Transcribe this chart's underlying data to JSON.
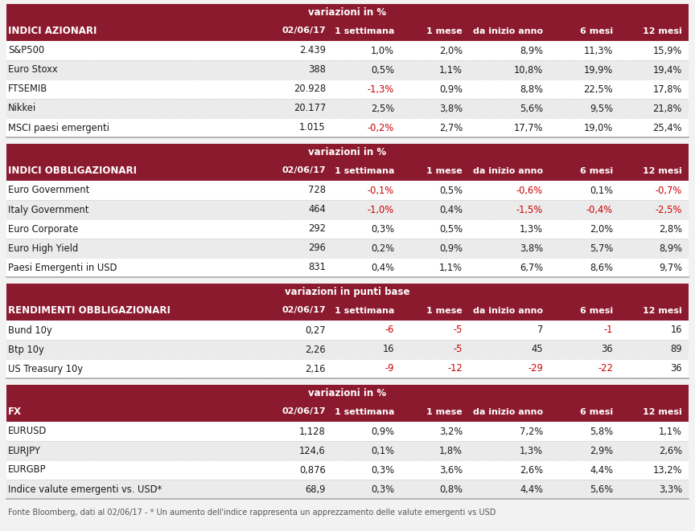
{
  "bg_color": "#f2f2f2",
  "header_bg": "#8B1A2E",
  "header_text_color": "#ffffff",
  "row_text_color": "#1a1a1a",
  "red_color": "#CC0000",
  "footer_text": "Fonte Bloomberg, dati al 02/06/17 - * Un aumento dell'indice rappresenta un apprezzamento delle valute emergenti vs USD",
  "sections": [
    {
      "header": "INDICI AZIONARI",
      "subheader": "variazioni in %",
      "cols": [
        "02/06/17",
        "1 settimana",
        "1 mese",
        "da inizio anno",
        "6 mesi",
        "12 mesi"
      ],
      "rows": [
        {
          "name": "S&P500",
          "vals": [
            "2.439",
            "1,0%",
            "2,0%",
            "8,9%",
            "11,3%",
            "15,9%"
          ],
          "red": [
            false,
            false,
            false,
            false,
            false,
            false
          ]
        },
        {
          "name": "Euro Stoxx",
          "vals": [
            "388",
            "0,5%",
            "1,1%",
            "10,8%",
            "19,9%",
            "19,4%"
          ],
          "red": [
            false,
            false,
            false,
            false,
            false,
            false
          ]
        },
        {
          "name": "FTSEMIB",
          "vals": [
            "20.928",
            "-1,3%",
            "0,9%",
            "8,8%",
            "22,5%",
            "17,8%"
          ],
          "red": [
            false,
            true,
            false,
            false,
            false,
            false
          ]
        },
        {
          "name": "Nikkei",
          "vals": [
            "20.177",
            "2,5%",
            "3,8%",
            "5,6%",
            "9,5%",
            "21,8%"
          ],
          "red": [
            false,
            false,
            false,
            false,
            false,
            false
          ]
        },
        {
          "name": "MSCI paesi emergenti",
          "vals": [
            "1.015",
            "-0,2%",
            "2,7%",
            "17,7%",
            "19,0%",
            "25,4%"
          ],
          "red": [
            false,
            true,
            false,
            false,
            false,
            false
          ]
        }
      ]
    },
    {
      "header": "INDICI OBBLIGAZIONARI",
      "subheader": "variazioni in %",
      "cols": [
        "02/06/17",
        "1 settimana",
        "1 mese",
        "da inizio anno",
        "6 mesi",
        "12 mesi"
      ],
      "rows": [
        {
          "name": "Euro Government",
          "vals": [
            "728",
            "-0,1%",
            "0,5%",
            "-0,6%",
            "0,1%",
            "-0,7%"
          ],
          "red": [
            false,
            true,
            false,
            true,
            false,
            true
          ]
        },
        {
          "name": "Italy Government",
          "vals": [
            "464",
            "-1,0%",
            "0,4%",
            "-1,5%",
            "-0,4%",
            "-2,5%"
          ],
          "red": [
            false,
            true,
            false,
            true,
            true,
            true
          ]
        },
        {
          "name": "Euro Corporate",
          "vals": [
            "292",
            "0,3%",
            "0,5%",
            "1,3%",
            "2,0%",
            "2,8%"
          ],
          "red": [
            false,
            false,
            false,
            false,
            false,
            false
          ]
        },
        {
          "name": "Euro High Yield",
          "vals": [
            "296",
            "0,2%",
            "0,9%",
            "3,8%",
            "5,7%",
            "8,9%"
          ],
          "red": [
            false,
            false,
            false,
            false,
            false,
            false
          ]
        },
        {
          "name": "Paesi Emergenti in USD",
          "vals": [
            "831",
            "0,4%",
            "1,1%",
            "6,7%",
            "8,6%",
            "9,7%"
          ],
          "red": [
            false,
            false,
            false,
            false,
            false,
            false
          ]
        }
      ]
    },
    {
      "header": "RENDIMENTI OBBLIGAZIONARI",
      "subheader": "variazioni in punti base",
      "cols": [
        "02/06/17",
        "1 settimana",
        "1 mese",
        "da inizio anno",
        "6 mesi",
        "12 mesi"
      ],
      "rows": [
        {
          "name": "Bund 10y",
          "vals": [
            "0,27",
            "-6",
            "-5",
            "7",
            "-1",
            "16"
          ],
          "red": [
            false,
            true,
            true,
            false,
            true,
            false
          ]
        },
        {
          "name": "Btp 10y",
          "vals": [
            "2,26",
            "16",
            "-5",
            "45",
            "36",
            "89"
          ],
          "red": [
            false,
            false,
            true,
            false,
            false,
            false
          ]
        },
        {
          "name": "US Treasury 10y",
          "vals": [
            "2,16",
            "-9",
            "-12",
            "-29",
            "-22",
            "36"
          ],
          "red": [
            false,
            true,
            true,
            true,
            true,
            false
          ]
        }
      ]
    },
    {
      "header": "FX",
      "subheader": "variazioni in %",
      "cols": [
        "02/06/17",
        "1 settimana",
        "1 mese",
        "da inizio anno",
        "6 mesi",
        "12 mesi"
      ],
      "rows": [
        {
          "name": "EURUSD",
          "vals": [
            "1,128",
            "0,9%",
            "3,2%",
            "7,2%",
            "5,8%",
            "1,1%"
          ],
          "red": [
            false,
            false,
            false,
            false,
            false,
            false
          ]
        },
        {
          "name": "EURJPY",
          "vals": [
            "124,6",
            "0,1%",
            "1,8%",
            "1,3%",
            "2,9%",
            "2,6%"
          ],
          "red": [
            false,
            false,
            false,
            false,
            false,
            false
          ]
        },
        {
          "name": "EURGBP",
          "vals": [
            "0,876",
            "0,3%",
            "3,6%",
            "2,6%",
            "4,4%",
            "13,2%"
          ],
          "red": [
            false,
            false,
            false,
            false,
            false,
            false
          ]
        },
        {
          "name": "Indice valute emergenti vs. USD*",
          "vals": [
            "68,9",
            "0,3%",
            "0,8%",
            "4,4%",
            "5,6%",
            "3,3%"
          ],
          "red": [
            false,
            false,
            false,
            false,
            false,
            false
          ]
        }
      ]
    }
  ]
}
